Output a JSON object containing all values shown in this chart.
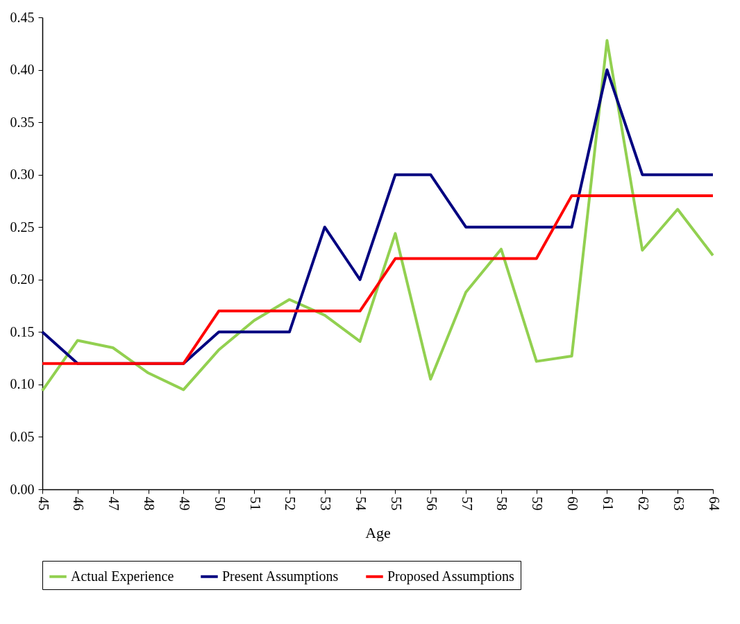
{
  "chart_data": {
    "type": "line",
    "xlabel": "Age",
    "categories": [
      "45",
      "46",
      "47",
      "48",
      "49",
      "50",
      "51",
      "52",
      "53",
      "54",
      "55",
      "56",
      "57",
      "58",
      "59",
      "60",
      "61",
      "62",
      "63",
      "64"
    ],
    "series": [
      {
        "name": "Actual Experience",
        "color": "#92d050",
        "values": [
          0.094,
          0.142,
          0.135,
          0.111,
          0.095,
          0.133,
          0.161,
          0.181,
          0.166,
          0.141,
          0.244,
          0.105,
          0.188,
          0.229,
          0.122,
          0.127,
          0.428,
          0.228,
          0.267,
          0.223
        ]
      },
      {
        "name": "Present Assumptions",
        "color": "#000080",
        "values": [
          0.15,
          0.12,
          0.12,
          0.12,
          0.12,
          0.15,
          0.15,
          0.15,
          0.25,
          0.2,
          0.3,
          0.3,
          0.25,
          0.25,
          0.25,
          0.25,
          0.4,
          0.3,
          0.3,
          0.3
        ]
      },
      {
        "name": "Proposed Assumptions",
        "color": "#ff0000",
        "values": [
          0.12,
          0.12,
          0.12,
          0.12,
          0.12,
          0.17,
          0.17,
          0.17,
          0.17,
          0.17,
          0.22,
          0.22,
          0.22,
          0.22,
          0.22,
          0.28,
          0.28,
          0.28,
          0.28,
          0.28
        ]
      }
    ],
    "ylim": [
      0,
      0.45
    ],
    "yticks": [
      {
        "value": 0,
        "label": "0.00"
      },
      {
        "value": 0.05,
        "label": "0.05"
      },
      {
        "value": 0.1,
        "label": "0.10"
      },
      {
        "value": 0.15,
        "label": "0.15"
      },
      {
        "value": 0.2,
        "label": "0.20"
      },
      {
        "value": 0.25,
        "label": "0.25"
      },
      {
        "value": 0.3,
        "label": "0.30"
      },
      {
        "value": 0.35,
        "label": "0.35"
      },
      {
        "value": 0.4,
        "label": "0.40"
      },
      {
        "value": 0.45,
        "label": "0.45"
      }
    ],
    "legend": "bottom",
    "grid": false,
    "marker": "none",
    "line_style": "solid"
  }
}
